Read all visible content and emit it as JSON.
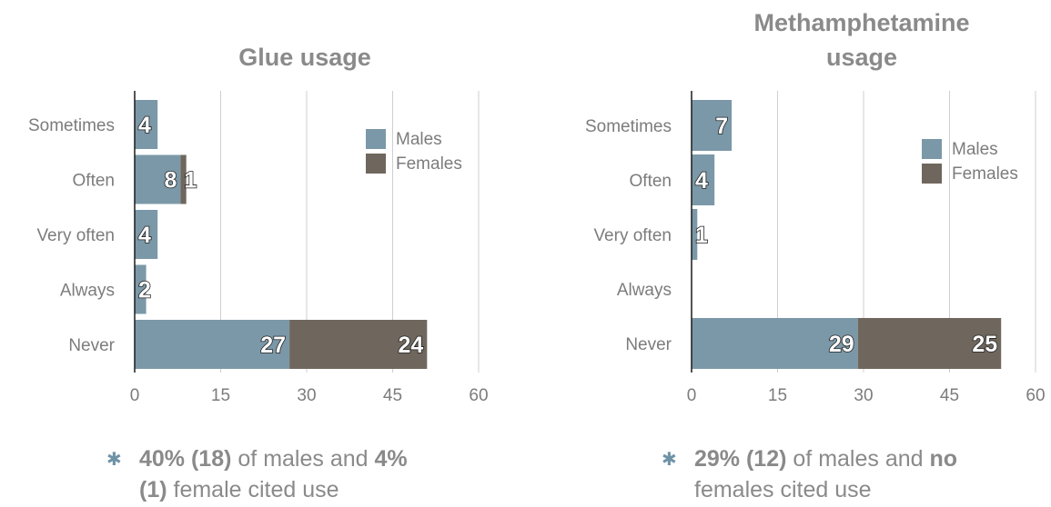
{
  "colors": {
    "males": "#7b98a8",
    "females": "#6f675d",
    "grid": "#cfcfcf",
    "axis": "#1c1c1c",
    "title": "#8a8a8a"
  },
  "chart_data": [
    {
      "type": "bar",
      "orientation": "horizontal",
      "stacked": true,
      "title": "Glue usage",
      "categories": [
        "Sometimes",
        "Often",
        "Very often",
        "Always",
        "Never"
      ],
      "series": [
        {
          "name": "Males",
          "values": [
            4,
            8,
            4,
            2,
            27
          ],
          "color": "#7b98a8"
        },
        {
          "name": "Females",
          "values": [
            0,
            1,
            0,
            0,
            24
          ],
          "color": "#6f675d"
        }
      ],
      "xlim": [
        0,
        60
      ],
      "xticks": [
        0,
        15,
        30,
        45,
        60
      ],
      "grid": true,
      "legend": "top-right",
      "xlabel": "",
      "ylabel": ""
    },
    {
      "type": "bar",
      "orientation": "horizontal",
      "stacked": true,
      "title": "Methamphetamine usage",
      "categories": [
        "Sometimes",
        "Often",
        "Very often",
        "Always",
        "Never"
      ],
      "series": [
        {
          "name": "Males",
          "values": [
            7,
            4,
            1,
            0,
            29
          ],
          "color": "#7b98a8"
        },
        {
          "name": "Females",
          "values": [
            0,
            0,
            0,
            0,
            25
          ],
          "color": "#6f675d"
        }
      ],
      "xlim": [
        0,
        60
      ],
      "xticks": [
        0,
        15,
        30,
        45,
        60
      ],
      "grid": true,
      "legend": "top-right",
      "xlabel": "",
      "ylabel": ""
    }
  ],
  "titles": [
    {
      "lines": [
        "Glue usage"
      ]
    },
    {
      "lines": [
        "Methamphetamine",
        "usage"
      ]
    }
  ],
  "notes": [
    {
      "bold1": "40% (18)",
      "text1": " of males and ",
      "bold2": "4%",
      "line2_bold": "(1)",
      "line2_text": " female cited use"
    },
    {
      "bold1": "29% (12)",
      "text1": " of males and ",
      "bold2": "no",
      "line2_bold": "",
      "line2_text": "females cited use"
    }
  ]
}
